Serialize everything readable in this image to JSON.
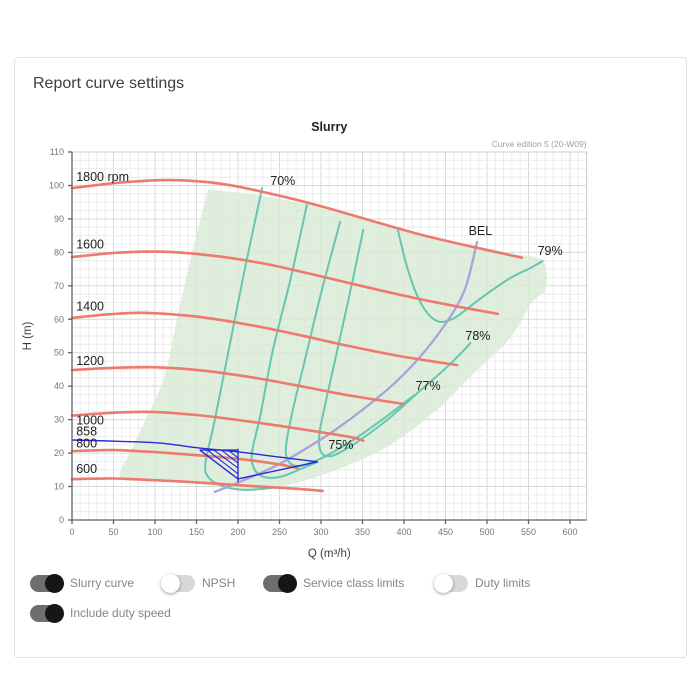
{
  "page": {
    "heading": "Report curve settings"
  },
  "toggles": [
    {
      "id": "slurry-curve",
      "label": "Slurry curve",
      "on": true
    },
    {
      "id": "npsh",
      "label": "NPSH",
      "on": false
    },
    {
      "id": "service-class-limits",
      "label": "Service class limits",
      "on": true
    },
    {
      "id": "duty-limits",
      "label": "Duty limits",
      "on": false
    },
    {
      "id": "include-duty-speed",
      "label": "Include duty speed",
      "on": true
    }
  ],
  "chart_data": {
    "type": "line",
    "title": "Slurry",
    "edition_note": "Curve edition 5 (20-W09)",
    "xlabel": "Q (m³/h)",
    "ylabel": "H (m)",
    "xlim": [
      0,
      620
    ],
    "ylim": [
      0,
      110
    ],
    "x_ticks": [
      0,
      50,
      100,
      150,
      200,
      250,
      300,
      350,
      400,
      450,
      500,
      550,
      600
    ],
    "y_ticks": [
      0,
      10,
      20,
      30,
      40,
      50,
      60,
      70,
      80,
      90,
      100,
      110
    ],
    "x_minor_step": 10,
    "y_minor_step": 2.5,
    "grid": true,
    "colors": {
      "speed_curve": "#ed7a6e",
      "efficiency_contour": "#66c6b0",
      "bel_line": "#a7a4d9",
      "duty_curve": "#2a2ad4",
      "operating_region": "#d8ead5",
      "grid_minor": "#ececec",
      "grid_major": "#d9d9d9",
      "axis": "#5f6368",
      "tick_text": "#757575",
      "label_text": "#222222"
    },
    "operating_region": [
      [
        164,
        98.7
      ],
      [
        202,
        97.8
      ],
      [
        250,
        96.0
      ],
      [
        299,
        93.3
      ],
      [
        347,
        90.0
      ],
      [
        395,
        86.7
      ],
      [
        443,
        84.0
      ],
      [
        491,
        81.6
      ],
      [
        534,
        79.5
      ],
      [
        567,
        77.4
      ],
      [
        571,
        69.3
      ],
      [
        554,
        64.9
      ],
      [
        528,
        54.4
      ],
      [
        491,
        45.4
      ],
      [
        467,
        39.5
      ],
      [
        449,
        35.0
      ],
      [
        425,
        29.9
      ],
      [
        401,
        25.4
      ],
      [
        377,
        21.5
      ],
      [
        347,
        17.9
      ],
      [
        317,
        14.9
      ],
      [
        287,
        12.3
      ],
      [
        251,
        9.9
      ],
      [
        214,
        9.0
      ],
      [
        178,
        9.9
      ],
      [
        142,
        11.1
      ],
      [
        94,
        12.0
      ],
      [
        58,
        12.6
      ],
      [
        73,
        21.8
      ],
      [
        110,
        41.9
      ],
      [
        128,
        61.9
      ],
      [
        146,
        81.6
      ]
    ],
    "speed_curves": [
      {
        "name": "1800 rpm",
        "rpm": 1800,
        "points": [
          [
            0,
            99.2
          ],
          [
            60,
            100.9
          ],
          [
            120,
            101.6
          ],
          [
            180,
            100.5
          ],
          [
            240,
            97.5
          ],
          [
            300,
            93.8
          ],
          [
            360,
            89.5
          ],
          [
            420,
            85.3
          ],
          [
            480,
            81.8
          ],
          [
            542,
            78.4
          ]
        ]
      },
      {
        "name": "1600",
        "rpm": 1600,
        "points": [
          [
            0,
            78.6
          ],
          [
            55,
            79.9
          ],
          [
            110,
            80.2
          ],
          [
            170,
            79.0
          ],
          [
            230,
            76.7
          ],
          [
            290,
            73.4
          ],
          [
            350,
            69.9
          ],
          [
            410,
            66.5
          ],
          [
            465,
            63.8
          ],
          [
            513,
            61.6
          ]
        ]
      },
      {
        "name": "1400",
        "rpm": 1400,
        "points": [
          [
            0,
            60.4
          ],
          [
            45,
            61.5
          ],
          [
            90,
            61.9
          ],
          [
            150,
            60.8
          ],
          [
            210,
            58.5
          ],
          [
            270,
            55.5
          ],
          [
            330,
            52.2
          ],
          [
            390,
            49.2
          ],
          [
            430,
            47.6
          ],
          [
            464,
            46.3
          ]
        ]
      },
      {
        "name": "1200",
        "rpm": 1200,
        "points": [
          [
            0,
            44.8
          ],
          [
            50,
            45.5
          ],
          [
            106,
            45.6
          ],
          [
            160,
            44.6
          ],
          [
            220,
            42.5
          ],
          [
            280,
            39.8
          ],
          [
            330,
            37.4
          ],
          [
            370,
            35.8
          ],
          [
            399,
            34.7
          ]
        ]
      },
      {
        "name": "1000",
        "rpm": 1000,
        "points": [
          [
            0,
            31.2
          ],
          [
            45,
            32.0
          ],
          [
            95,
            32.3
          ],
          [
            150,
            31.4
          ],
          [
            214,
            29.4
          ],
          [
            275,
            27.2
          ],
          [
            335,
            24.8
          ],
          [
            351,
            23.7
          ]
        ]
      },
      {
        "name": "800",
        "rpm": 800,
        "points": [
          [
            0,
            20.6
          ],
          [
            50,
            20.9
          ],
          [
            100,
            20.3
          ],
          [
            160,
            19.2
          ],
          [
            214,
            17.9
          ],
          [
            250,
            16.6
          ],
          [
            272,
            15.5
          ]
        ]
      },
      {
        "name": "600",
        "rpm": 600,
        "points": [
          [
            0,
            12.2
          ],
          [
            50,
            12.4
          ],
          [
            100,
            11.9
          ],
          [
            160,
            11.1
          ],
          [
            214,
            10.2
          ],
          [
            260,
            9.5
          ],
          [
            302,
            8.7
          ]
        ]
      }
    ],
    "duty_speed_curve": {
      "name": "858",
      "rpm": 858,
      "points": [
        [
          0,
          23.9
        ],
        [
          60,
          23.5
        ],
        [
          106,
          23.0
        ],
        [
          154,
          21.5
        ],
        [
          202,
          20.3
        ],
        [
          250,
          18.8
        ],
        [
          296,
          17.4
        ]
      ]
    },
    "service_class_limit_segments": [
      [
        [
          154,
          20.9
        ],
        [
          200,
          20.9
        ]
      ],
      [
        [
          200,
          21.3
        ],
        [
          200,
          11.3
        ]
      ],
      [
        [
          154,
          20.9
        ],
        [
          200,
          12.3
        ]
      ],
      [
        [
          200,
          12.3
        ],
        [
          296,
          17.4
        ]
      ]
    ],
    "hatch_segments": [
      [
        [
          163,
          20.9
        ],
        [
          200,
          13.8
        ]
      ],
      [
        [
          171,
          20.9
        ],
        [
          200,
          15.5
        ]
      ],
      [
        [
          180,
          20.9
        ],
        [
          200,
          17.0
        ]
      ],
      [
        [
          188,
          20.9
        ],
        [
          200,
          18.6
        ]
      ],
      [
        [
          196,
          20.9
        ],
        [
          200,
          20.2
        ]
      ]
    ],
    "efficiency_contours": [
      {
        "name": "70%",
        "points": [
          [
            229,
            99.2
          ],
          [
            208,
            74.7
          ],
          [
            190,
            52.3
          ],
          [
            172,
            29.9
          ],
          [
            161,
            17.3
          ],
          [
            164,
            12.9
          ],
          [
            181,
            10.2
          ],
          [
            208,
            9.0
          ],
          [
            241,
            9.6
          ]
        ]
      },
      {
        "name": "75%",
        "points": [
          [
            283,
            94.2
          ],
          [
            263,
            71.7
          ],
          [
            242,
            50.8
          ],
          [
            227,
            31.4
          ],
          [
            217,
            20.3
          ],
          [
            219,
            15.5
          ],
          [
            231,
            12.9
          ],
          [
            251,
            12.9
          ],
          [
            275,
            15.2
          ],
          [
            295,
            17.3
          ]
        ]
      },
      {
        "name": "77%",
        "points": [
          [
            323,
            89.1
          ],
          [
            301,
            68.7
          ],
          [
            282,
            49.3
          ],
          [
            266,
            32.9
          ],
          [
            258,
            22.4
          ],
          [
            260,
            17.9
          ],
          [
            272,
            16.1
          ],
          [
            293,
            17.6
          ],
          [
            323,
            21.5
          ],
          [
            353,
            26.3
          ],
          [
            383,
            31.7
          ],
          [
            405,
            35.9
          ],
          [
            413,
            37.4
          ]
        ]
      },
      {
        "name": "78%",
        "points": [
          [
            351,
            86.7
          ],
          [
            333,
            65.8
          ],
          [
            317,
            47.8
          ],
          [
            305,
            34.4
          ],
          [
            298,
            25.4
          ],
          [
            300,
            20.3
          ],
          [
            312,
            19.1
          ],
          [
            330,
            21.2
          ],
          [
            354,
            25.1
          ],
          [
            384,
            30.8
          ],
          [
            419,
            38.6
          ],
          [
            449,
            45.1
          ],
          [
            470,
            50.2
          ],
          [
            480,
            52.9
          ]
        ]
      },
      {
        "name": "79%",
        "points": [
          [
            392,
            87.3
          ],
          [
            402,
            77.1
          ],
          [
            414,
            68.2
          ],
          [
            428,
            61.9
          ],
          [
            443,
            59.2
          ],
          [
            461,
            60.4
          ],
          [
            482,
            64.3
          ],
          [
            506,
            68.7
          ],
          [
            530,
            72.6
          ],
          [
            552,
            75.3
          ],
          [
            567,
            77.4
          ]
        ]
      }
    ],
    "bel_line": {
      "name": "BEL",
      "points": [
        [
          172,
          8.4
        ],
        [
          208,
          12.0
        ],
        [
          245,
          16.1
        ],
        [
          281,
          21.2
        ],
        [
          317,
          26.9
        ],
        [
          353,
          33.5
        ],
        [
          389,
          41.0
        ],
        [
          419,
          48.7
        ],
        [
          449,
          58.3
        ],
        [
          473,
          68.7
        ],
        [
          488,
          83.1
        ]
      ]
    },
    "curve_labels": [
      {
        "text": "1800 rpm",
        "q": 5,
        "h": 102.6,
        "anchor": "start"
      },
      {
        "text": "1600",
        "q": 5,
        "h": 82.3,
        "anchor": "start"
      },
      {
        "text": "1400",
        "q": 5,
        "h": 63.8,
        "anchor": "start"
      },
      {
        "text": "1200",
        "q": 5,
        "h": 47.6,
        "anchor": "start"
      },
      {
        "text": "1000",
        "q": 5,
        "h": 29.7,
        "anchor": "start"
      },
      {
        "text": "858",
        "q": 5,
        "h": 26.4,
        "anchor": "start"
      },
      {
        "text": "800",
        "q": 5,
        "h": 22.9,
        "anchor": "start"
      },
      {
        "text": "600",
        "q": 5,
        "h": 15.3,
        "anchor": "start"
      },
      {
        "text": "70%",
        "q": 254,
        "h": 101.3,
        "anchor": "middle"
      },
      {
        "text": "BEL",
        "q": 492,
        "h": 86.4,
        "anchor": "middle"
      },
      {
        "text": "79%",
        "q": 576,
        "h": 80.4,
        "anchor": "middle"
      },
      {
        "text": "78%",
        "q": 489,
        "h": 55.0,
        "anchor": "middle"
      },
      {
        "text": "77%",
        "q": 429,
        "h": 40.1,
        "anchor": "middle"
      },
      {
        "text": "75%",
        "q": 324,
        "h": 22.4,
        "anchor": "middle"
      }
    ]
  }
}
